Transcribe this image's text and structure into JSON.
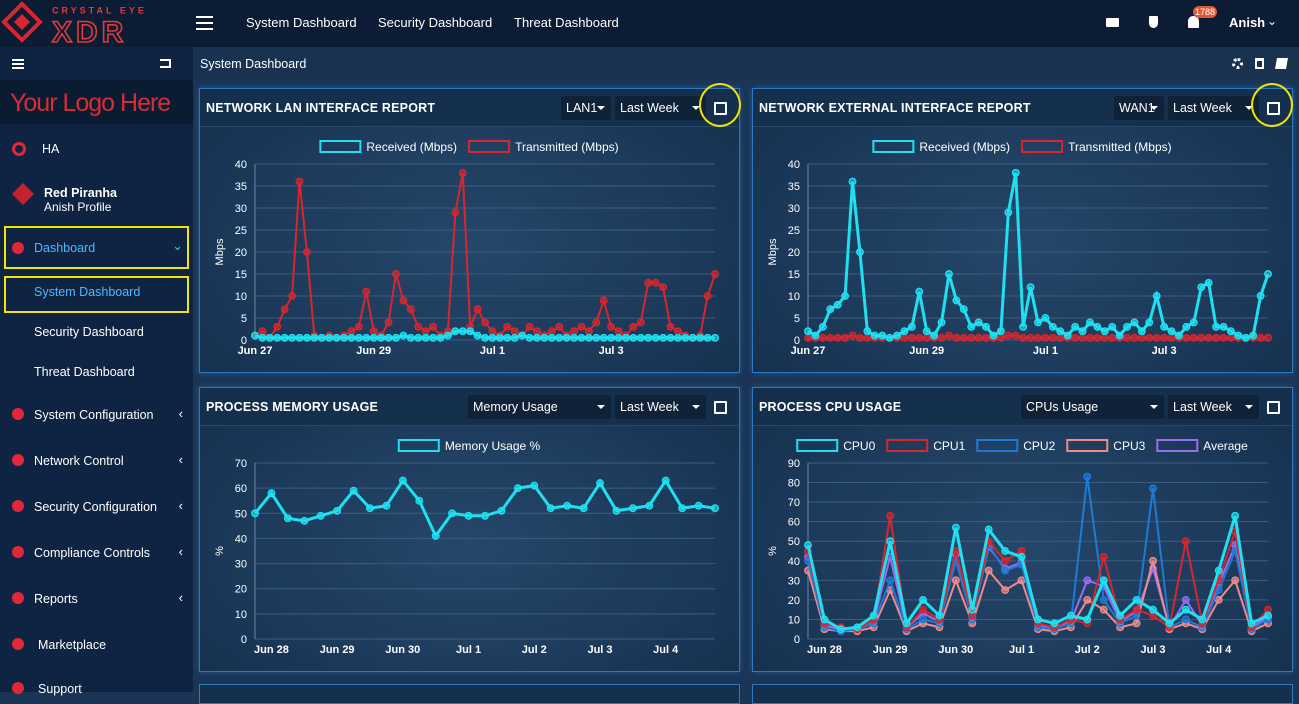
{
  "header": {
    "brand": "CRYSTAL EYE",
    "product": "XDR",
    "nav": [
      "System Dashboard",
      "Security Dashboard",
      "Threat Dashboard"
    ],
    "notifications": "1788",
    "user": "Anish"
  },
  "sidebar": {
    "logo": "Your Logo Here",
    "ha": "HA",
    "profile": {
      "name": "Red Piranha",
      "subtitle": "Anish Profile"
    },
    "menu": [
      {
        "label": "Dashboard",
        "children": [
          "System Dashboard",
          "Security Dashboard",
          "Threat Dashboard"
        ]
      },
      {
        "label": "System Configuration"
      },
      {
        "label": "Network Control"
      },
      {
        "label": "Security Configuration"
      },
      {
        "label": "Compliance Controls"
      },
      {
        "label": "Reports"
      },
      {
        "label": "Marketplace"
      },
      {
        "label": "Support"
      }
    ]
  },
  "breadcrumb": "System Dashboard",
  "chart_data": [
    {
      "type": "line",
      "title": "NETWORK LAN INTERFACE REPORT",
      "selects": [
        "LAN1",
        "Last Week"
      ],
      "y_label": "Mbps",
      "legend": "top",
      "grid": true,
      "categories": [
        "Jun 27",
        null,
        null,
        null,
        null,
        null,
        null,
        null,
        null,
        null,
        null,
        null,
        null,
        null,
        null,
        null,
        "Jun 29",
        null,
        null,
        null,
        null,
        null,
        null,
        null,
        null,
        null,
        null,
        null,
        null,
        null,
        null,
        null,
        "Jul 1",
        null,
        null,
        null,
        null,
        null,
        null,
        null,
        null,
        null,
        null,
        null,
        null,
        null,
        null,
        null,
        "Jul 3",
        null,
        null,
        null,
        null,
        null,
        null,
        null,
        null,
        null,
        null,
        null,
        null,
        null,
        null
      ],
      "ylim": [
        0,
        40
      ],
      "yticks": [
        0,
        5,
        10,
        15,
        20,
        25,
        30,
        35,
        40
      ],
      "series": [
        {
          "name": "Received (Mbps)",
          "color": "#1ee0f0",
          "values": [
            1,
            0.5,
            0.5,
            0.5,
            0.5,
            0.5,
            0.5,
            0.5,
            0.5,
            0.5,
            0.5,
            0.5,
            0.5,
            0.5,
            0.5,
            0.5,
            0.5,
            0.5,
            0.5,
            0.5,
            1,
            0.5,
            0.5,
            0.5,
            0.5,
            0.5,
            1,
            2,
            2,
            2,
            1,
            0.5,
            0.5,
            0.5,
            0.5,
            0.5,
            1,
            0.5,
            0.5,
            0.5,
            0.5,
            0.5,
            0.5,
            0.5,
            0.5,
            0.5,
            0.5,
            0.5,
            0.5,
            0.5,
            0.5,
            0.5,
            0.5,
            0.5,
            0.5,
            0.5,
            0.5,
            0.5,
            0.5,
            0.5,
            0.5,
            0.5,
            0.5
          ]
        },
        {
          "name": "Transmitted (Mbps)",
          "color": "#d8262e",
          "values": [
            1,
            2,
            0.5,
            3,
            7,
            10,
            36,
            20,
            1,
            0.5,
            1,
            0.5,
            1,
            2,
            3,
            11,
            2,
            1,
            4,
            15,
            9,
            7,
            3,
            2,
            3,
            1,
            2,
            29,
            38,
            3,
            7,
            4,
            2,
            1,
            3,
            2,
            1,
            3,
            2,
            1,
            2,
            3,
            1,
            2,
            3,
            2,
            4,
            9,
            3,
            2,
            1,
            3,
            4,
            13,
            13,
            12,
            3,
            2,
            1,
            0.5,
            1,
            10,
            15
          ]
        }
      ]
    },
    {
      "type": "line",
      "title": "NETWORK EXTERNAL INTERFACE REPORT",
      "selects": [
        "WAN1",
        "Last Week"
      ],
      "y_label": "Mbps",
      "legend": "top",
      "grid": true,
      "categories": [
        "Jun 27",
        null,
        null,
        null,
        null,
        null,
        null,
        null,
        null,
        null,
        null,
        null,
        null,
        null,
        null,
        null,
        "Jun 29",
        null,
        null,
        null,
        null,
        null,
        null,
        null,
        null,
        null,
        null,
        null,
        null,
        null,
        null,
        null,
        "Jul 1",
        null,
        null,
        null,
        null,
        null,
        null,
        null,
        null,
        null,
        null,
        null,
        null,
        null,
        null,
        null,
        "Jul 3",
        null,
        null,
        null,
        null,
        null,
        null,
        null,
        null,
        null,
        null,
        null,
        null,
        null,
        null
      ],
      "ylim": [
        0,
        40
      ],
      "yticks": [
        0,
        5,
        10,
        15,
        20,
        25,
        30,
        35,
        40
      ],
      "series": [
        {
          "name": "Received (Mbps)",
          "color": "#1ee0f0",
          "values": [
            2,
            1,
            3,
            7,
            8,
            10,
            36,
            20,
            2,
            1,
            1,
            0.5,
            1,
            2,
            3,
            11,
            2,
            1,
            4,
            15,
            9,
            7,
            3,
            4,
            3,
            1,
            2,
            29,
            38,
            3,
            12,
            4,
            5,
            3,
            2,
            1,
            3,
            2,
            4,
            3,
            2,
            3,
            1,
            3,
            4,
            2,
            4,
            10,
            3,
            2,
            1,
            3,
            4,
            12,
            13,
            3,
            3,
            2,
            1,
            0.5,
            1,
            10,
            15
          ]
        },
        {
          "name": "Transmitted (Mbps)",
          "color": "#d8262e",
          "values": [
            0.5,
            0.5,
            0.5,
            0.5,
            0.5,
            0.5,
            1,
            0.5,
            0.5,
            0.5,
            0.5,
            0.5,
            0.5,
            0.5,
            0.5,
            0.5,
            0.5,
            0.5,
            0.5,
            1,
            0.5,
            0.5,
            0.5,
            0.5,
            0.5,
            0.5,
            0.5,
            1,
            1,
            0.5,
            0.5,
            0.5,
            0.5,
            0.5,
            0.5,
            0.5,
            0.5,
            0.5,
            0.5,
            0.5,
            0.5,
            0.5,
            0.5,
            0.5,
            0.5,
            0.5,
            0.5,
            0.5,
            0.5,
            0.5,
            0.5,
            0.5,
            0.5,
            0.5,
            0.5,
            0.5,
            0.5,
            0.5,
            0.5,
            0.5,
            0.5,
            0.5,
            0.5
          ]
        }
      ]
    },
    {
      "type": "line",
      "title": "PROCESS MEMORY USAGE",
      "selects": [
        "Memory Usage",
        "Last Week"
      ],
      "y_label": "%",
      "legend": "top",
      "grid": true,
      "categories": [
        null,
        "Jun 28",
        null,
        null,
        null,
        "Jun 29",
        null,
        null,
        null,
        "Jun 30",
        null,
        null,
        null,
        "Jul 1",
        null,
        null,
        null,
        "Jul 2",
        null,
        null,
        null,
        "Jul 3",
        null,
        null,
        null,
        "Jul 4",
        null,
        null,
        null
      ],
      "ylim": [
        0,
        70
      ],
      "yticks": [
        0,
        10,
        20,
        30,
        40,
        50,
        60,
        70
      ],
      "series": [
        {
          "name": "Memory Usage %",
          "color": "#1ee0f0",
          "values": [
            50,
            58,
            48,
            47,
            49,
            51,
            59,
            52,
            53,
            63,
            55,
            41,
            50,
            49,
            49,
            51,
            60,
            61,
            52,
            53,
            52,
            62,
            51,
            52,
            53,
            63,
            52,
            53,
            52
          ]
        }
      ]
    },
    {
      "type": "line",
      "title": "PROCESS CPU USAGE",
      "selects": [
        "CPUs Usage",
        "Last Week"
      ],
      "y_label": "%",
      "legend": "top",
      "grid": true,
      "categories": [
        null,
        "Jun 28",
        null,
        null,
        null,
        "Jun 29",
        null,
        null,
        null,
        "Jun 30",
        null,
        null,
        null,
        "Jul 1",
        null,
        null,
        null,
        "Jul 2",
        null,
        null,
        null,
        "Jul 3",
        null,
        null,
        null,
        "Jul 4",
        null,
        null,
        null
      ],
      "ylim": [
        0,
        90
      ],
      "yticks": [
        0,
        10,
        20,
        30,
        40,
        50,
        60,
        70,
        80,
        90
      ],
      "series": [
        {
          "name": "CPU0",
          "color": "#1ee0f0",
          "values": [
            48,
            10,
            5,
            6,
            12,
            50,
            8,
            20,
            12,
            57,
            15,
            56,
            45,
            42,
            10,
            8,
            12,
            10,
            30,
            12,
            20,
            15,
            8,
            15,
            10,
            35,
            63,
            8,
            12
          ]
        },
        {
          "name": "CPU1",
          "color": "#d8262e",
          "values": [
            45,
            8,
            6,
            5,
            10,
            63,
            6,
            15,
            10,
            45,
            12,
            50,
            40,
            45,
            8,
            6,
            10,
            8,
            42,
            10,
            15,
            12,
            6,
            50,
            8,
            30,
            55,
            6,
            15
          ]
        },
        {
          "name": "CPU2",
          "color": "#1f7ad6",
          "values": [
            40,
            6,
            4,
            5,
            8,
            30,
            5,
            10,
            8,
            40,
            10,
            48,
            35,
            38,
            6,
            5,
            8,
            83,
            20,
            8,
            12,
            77,
            6,
            10,
            6,
            25,
            45,
            5,
            10
          ]
        },
        {
          "name": "CPU3",
          "color": "#f08a8a",
          "values": [
            35,
            5,
            4,
            4,
            6,
            25,
            4,
            8,
            6,
            30,
            8,
            35,
            25,
            30,
            5,
            4,
            6,
            20,
            15,
            6,
            8,
            40,
            5,
            8,
            5,
            20,
            30,
            4,
            8
          ]
        },
        {
          "name": "Average",
          "color": "#9a6cf0",
          "values": [
            42,
            7,
            5,
            5,
            9,
            42,
            6,
            13,
            9,
            43,
            11,
            47,
            36,
            39,
            7,
            6,
            9,
            30,
            27,
            9,
            14,
            36,
            6,
            20,
            7,
            28,
            48,
            6,
            11
          ]
        }
      ]
    }
  ]
}
